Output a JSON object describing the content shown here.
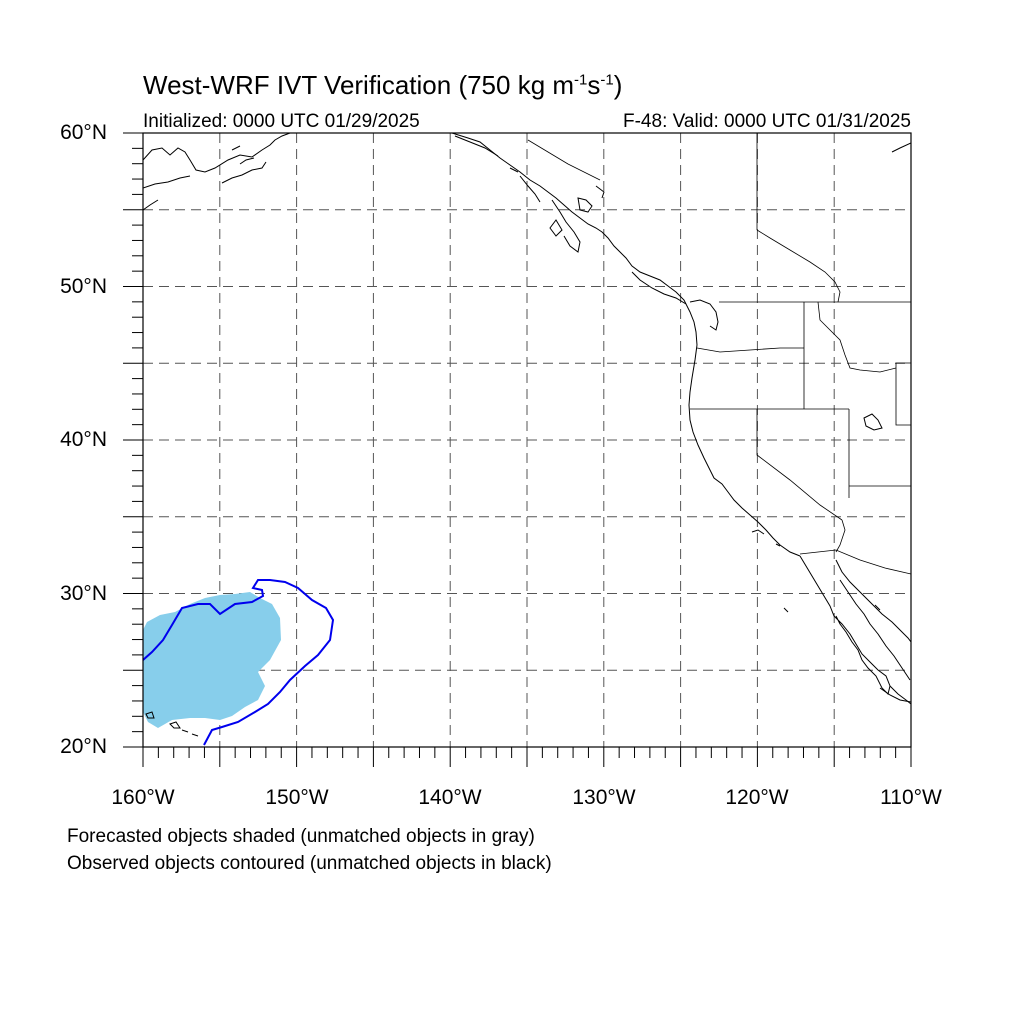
{
  "title": {
    "prefix": "West-WRF IVT Verification (750 kg m",
    "exp1": "-1",
    "mid": "s",
    "exp2": "-1",
    "suffix": ")"
  },
  "subtitle_left": "Initialized: 0000 UTC 01/29/2025",
  "subtitle_right": "F-48: Valid: 0000 UTC 01/31/2025",
  "lat_labels": [
    "60°N",
    "50°N",
    "40°N",
    "30°N",
    "20°N"
  ],
  "lon_labels": [
    "160°W",
    "150°W",
    "140°W",
    "130°W",
    "120°W",
    "110°W"
  ],
  "footnotes": [
    "Forecasted objects shaded (unmatched objects in gray)",
    "Observed objects contoured (unmatched objects in black)"
  ],
  "colors": {
    "forecast_fill": "#87ceeb",
    "observed_contour": "#0000ee",
    "coastline": "#000000",
    "gridline": "#555555"
  },
  "map_extent": {
    "lon": [
      -160,
      -110
    ],
    "lat": [
      20,
      60
    ]
  }
}
